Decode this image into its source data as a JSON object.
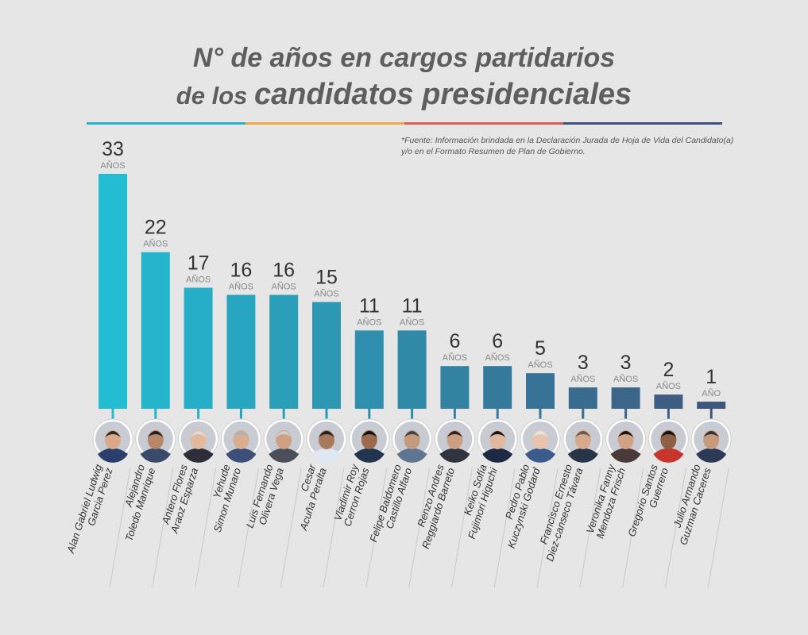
{
  "header": {
    "title_line1": "N° de años en cargos partidarios",
    "title_line2_prefix": "de los ",
    "title_line2_emph": "candidatos presidenciales"
  },
  "source_note": "*Fuente: Información brindada en la Declaración Jurada de Hoja de Vida del Candidato(a) y/o en el Formato Resumen de Plan de Gobierno.",
  "colors": {
    "background": "#e6e6e6",
    "rule": [
      "#26b3cc",
      "#f0a848",
      "#e05a5a",
      "#3d5080"
    ],
    "bar_start": "#22bcd3",
    "bar_end": "#3f567d",
    "value_text": "#333333",
    "unit_text": "#888888",
    "name_text": "#333333"
  },
  "chart_data": {
    "type": "bar",
    "ylim": [
      0,
      33
    ],
    "unit_plural": "AÑOS",
    "unit_singular": "AÑO",
    "categories": [
      [
        "Alan Gabriel Ludwig",
        "Garcia Perez"
      ],
      [
        "Alejandro",
        "Toledo Manrique"
      ],
      [
        "Antero Flores",
        "Araoz Esparza"
      ],
      [
        "Yehude",
        "Simon Munaro"
      ],
      [
        "Luis Fernando",
        "Olivera Vega"
      ],
      [
        "Cesar",
        "Acuña Peralta"
      ],
      [
        "Vladimir Roy",
        "Cerron Rojas"
      ],
      [
        "Felipe Baldomero",
        "Castillo Alfaro"
      ],
      [
        "Renzo Andres",
        "Reggiardo Barreto"
      ],
      [
        "Keiko Sofía",
        "Fujimori Higuchi"
      ],
      [
        "Pedro Pablo",
        "Kuczynski Godard"
      ],
      [
        "Francisco Ernesto",
        "Diez-canseco Távara"
      ],
      [
        "Veronika Fanny",
        "Mendoza Frisch"
      ],
      [
        "Gregorio Santos",
        "Guerrero"
      ],
      [
        "Julio Armando",
        "Guzman Caceres"
      ]
    ],
    "values": [
      33,
      22,
      17,
      16,
      16,
      15,
      11,
      11,
      6,
      6,
      5,
      3,
      3,
      2,
      1
    ]
  }
}
